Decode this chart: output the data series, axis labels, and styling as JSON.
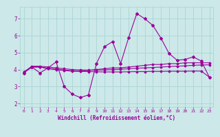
{
  "xlabel": "Windchill (Refroidissement éolien,°C)",
  "xlim": [
    -0.5,
    23.5
  ],
  "ylim": [
    1.8,
    7.7
  ],
  "yticks": [
    2,
    3,
    4,
    5,
    6,
    7
  ],
  "xticks": [
    0,
    1,
    2,
    3,
    4,
    5,
    6,
    7,
    8,
    9,
    10,
    11,
    12,
    13,
    14,
    15,
    16,
    17,
    18,
    19,
    20,
    21,
    22,
    23
  ],
  "background_color": "#cce8e8",
  "grid_color": "#aad4d4",
  "line_color": "#990099",
  "series1_x": [
    0,
    1,
    2,
    3,
    4,
    5,
    6,
    7,
    8,
    9,
    10,
    11,
    12,
    13,
    14,
    15,
    16,
    17,
    18,
    19,
    20,
    21,
    22,
    23
  ],
  "series1_y": [
    3.8,
    4.15,
    3.8,
    4.1,
    4.45,
    3.0,
    2.55,
    2.35,
    2.5,
    4.35,
    5.35,
    5.65,
    4.35,
    5.9,
    7.3,
    7.0,
    6.6,
    5.85,
    4.95,
    4.55,
    4.6,
    4.75,
    4.5,
    3.55
  ],
  "series2_x": [
    0,
    1,
    2,
    3,
    4,
    5,
    6,
    7,
    8,
    9,
    10,
    11,
    12,
    13,
    14,
    15,
    16,
    17,
    18,
    19,
    20,
    21,
    22,
    23
  ],
  "series2_y": [
    3.85,
    4.15,
    4.15,
    4.05,
    4.0,
    3.95,
    3.9,
    3.9,
    3.95,
    4.0,
    4.05,
    4.1,
    4.1,
    4.15,
    4.2,
    4.25,
    4.3,
    4.3,
    4.35,
    4.35,
    4.4,
    4.4,
    4.4,
    4.4
  ],
  "series3_x": [
    0,
    1,
    2,
    3,
    4,
    5,
    6,
    7,
    8,
    9,
    10,
    11,
    12,
    13,
    14,
    15,
    16,
    17,
    18,
    19,
    20,
    21,
    22,
    23
  ],
  "series3_y": [
    3.85,
    4.2,
    4.2,
    4.15,
    4.1,
    4.05,
    4.0,
    3.98,
    3.97,
    3.97,
    3.98,
    4.0,
    4.02,
    4.05,
    4.08,
    4.1,
    4.12,
    4.15,
    4.18,
    4.2,
    4.22,
    4.25,
    4.27,
    4.28
  ],
  "series4_x": [
    0,
    1,
    2,
    3,
    4,
    5,
    6,
    7,
    8,
    9,
    10,
    11,
    12,
    13,
    14,
    15,
    16,
    17,
    18,
    19,
    20,
    21,
    22,
    23
  ],
  "series4_y": [
    3.85,
    4.15,
    4.15,
    4.08,
    4.02,
    3.97,
    3.93,
    3.9,
    3.88,
    3.87,
    3.86,
    3.86,
    3.86,
    3.87,
    3.88,
    3.88,
    3.89,
    3.89,
    3.9,
    3.9,
    3.9,
    3.91,
    3.91,
    3.55
  ]
}
